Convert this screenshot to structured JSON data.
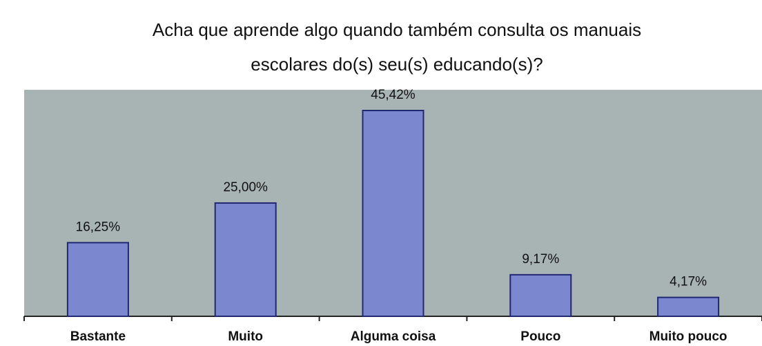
{
  "chart_data": {
    "type": "bar",
    "title": [
      "Acha que aprende algo quando também consulta os manuais",
      "escolares do(s) seu(s) educando(s)?"
    ],
    "categories": [
      "Bastante",
      "Muito",
      "Alguma coisa",
      "Pouco",
      "Muito pouco"
    ],
    "values": [
      16.25,
      25.0,
      45.42,
      9.17,
      4.17
    ],
    "value_labels": [
      "16,25%",
      "25,00%",
      "45,42%",
      "9,17%",
      "4,17%"
    ],
    "color": "#7b87cf"
  }
}
